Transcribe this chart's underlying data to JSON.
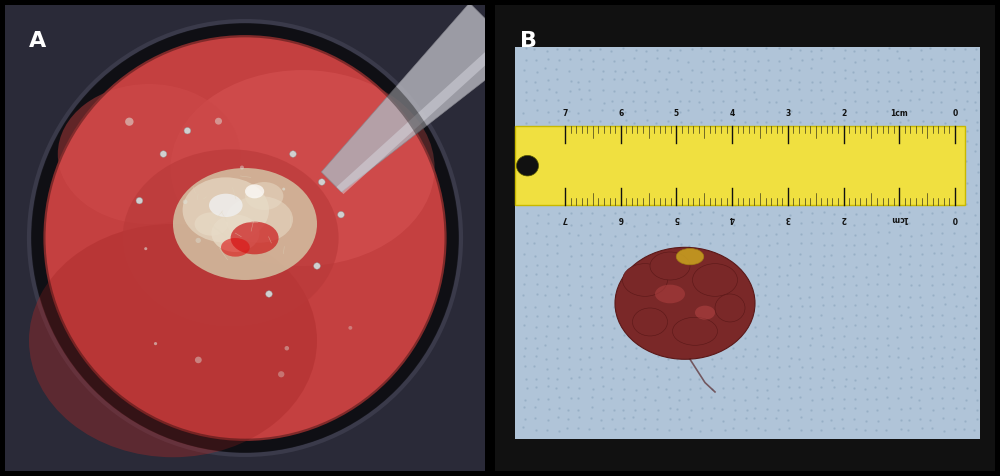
{
  "background_color": "#000000",
  "label_A": "A",
  "label_B": "B",
  "label_color": "#ffffff",
  "label_fontsize": 16,
  "label_fontweight": "bold",
  "panel_A": {
    "frame_bg": "#2a2a38",
    "scope_outer": "#181820",
    "scope_ring": "#3a3a4a",
    "tissue_main": "#c44040",
    "tissue_mid": "#cc4848",
    "tissue_bright": "#d85555",
    "tissue_dark": "#a82828",
    "tissue_shadow": "#903030",
    "tumor_main": "#d4c8a8",
    "tumor_bright": "#e8dcc8",
    "blood_red": "#cc2222",
    "tool_color": "#b0b0b8",
    "tool_dark": "#888890"
  },
  "panel_B": {
    "frame_bg": "#111111",
    "drape_color": "#b0c4d8",
    "drape_dot": "#90a8c0",
    "ruler_yellow": "#f0e040",
    "ruler_dark": "#c8b800",
    "ruler_text": "#111111",
    "hole_color": "#111111",
    "mass_dark": "#5a1818",
    "mass_mid": "#7a2828",
    "mass_bright": "#9a3838",
    "mass_sheen": "#b04040",
    "stalk_color": "#c8a020",
    "trail_color": "#4a1010"
  },
  "fig_width": 10.0,
  "fig_height": 4.76,
  "dpi": 100
}
